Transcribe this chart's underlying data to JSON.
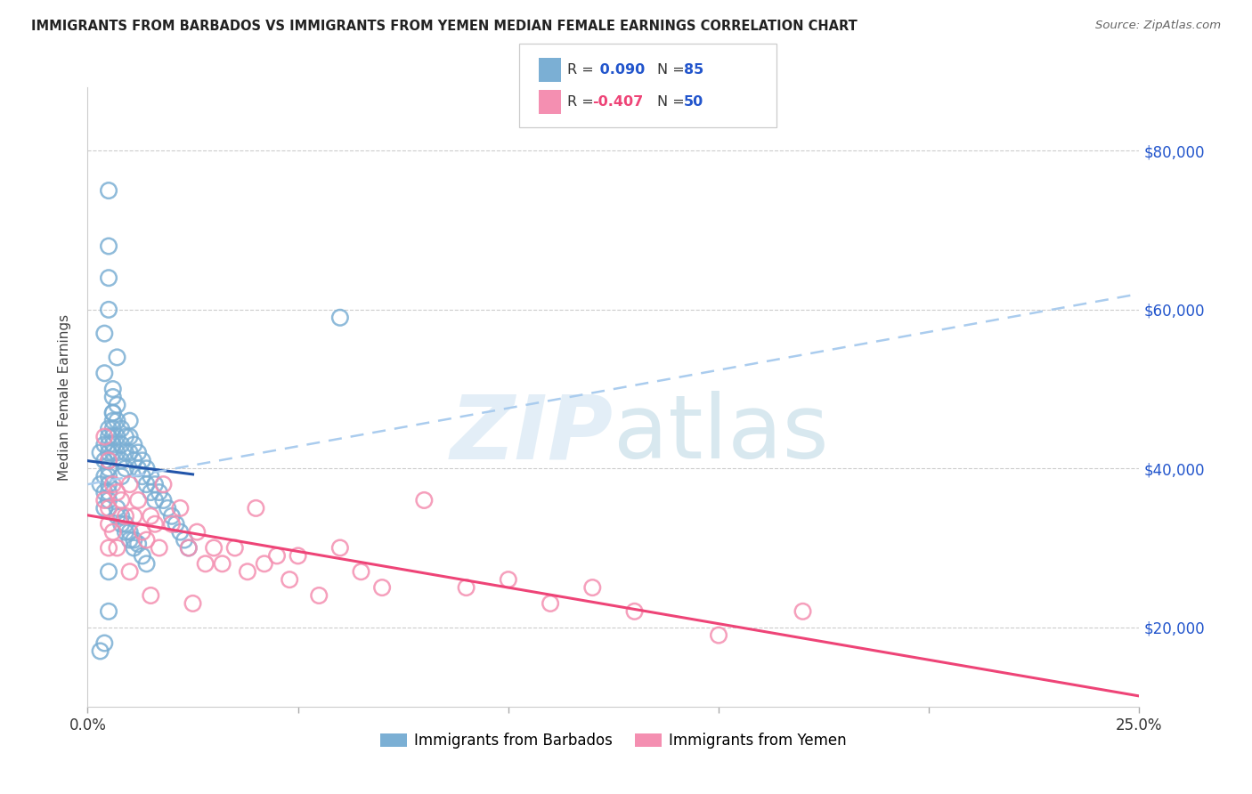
{
  "title": "IMMIGRANTS FROM BARBADOS VS IMMIGRANTS FROM YEMEN MEDIAN FEMALE EARNINGS CORRELATION CHART",
  "source": "Source: ZipAtlas.com",
  "ylabel": "Median Female Earnings",
  "y_ticks": [
    20000,
    40000,
    60000,
    80000
  ],
  "y_tick_labels": [
    "$20,000",
    "$40,000",
    "$60,000",
    "$80,000"
  ],
  "x_min": 0.0,
  "x_max": 0.25,
  "y_min": 10000,
  "y_max": 88000,
  "watermark": "ZIPatlas",
  "legend_r1": "0.090",
  "legend_n1": "85",
  "legend_r2": "-0.407",
  "legend_n2": "50",
  "color_blue": "#7bafd4",
  "color_pink": "#f48fb1",
  "color_blue_line": "#2255aa",
  "color_blue_dash": "#aaccee",
  "color_pink_line": "#ee4477",
  "background": "#ffffff",
  "grid_color": "#cccccc",
  "barbados_x": [
    0.003,
    0.003,
    0.004,
    0.004,
    0.004,
    0.004,
    0.004,
    0.005,
    0.005,
    0.005,
    0.005,
    0.005,
    0.005,
    0.005,
    0.005,
    0.005,
    0.005,
    0.005,
    0.006,
    0.006,
    0.006,
    0.006,
    0.006,
    0.006,
    0.006,
    0.007,
    0.007,
    0.007,
    0.007,
    0.007,
    0.008,
    0.008,
    0.008,
    0.008,
    0.009,
    0.009,
    0.009,
    0.01,
    0.01,
    0.01,
    0.011,
    0.011,
    0.012,
    0.012,
    0.013,
    0.013,
    0.014,
    0.014,
    0.015,
    0.015,
    0.016,
    0.016,
    0.017,
    0.018,
    0.019,
    0.02,
    0.021,
    0.022,
    0.023,
    0.024,
    0.005,
    0.005,
    0.005,
    0.004,
    0.004,
    0.006,
    0.006,
    0.007,
    0.008,
    0.009,
    0.01,
    0.011,
    0.012,
    0.013,
    0.014,
    0.007,
    0.008,
    0.009,
    0.01,
    0.011,
    0.06,
    0.005,
    0.005,
    0.004,
    0.003
  ],
  "barbados_y": [
    42000,
    38000,
    43000,
    41000,
    39000,
    37000,
    35000,
    75000,
    45000,
    44000,
    43000,
    42000,
    41000,
    40000,
    39000,
    38000,
    37000,
    36000,
    50000,
    47000,
    46000,
    45000,
    44000,
    43000,
    42000,
    54000,
    48000,
    46000,
    44000,
    42000,
    45000,
    43000,
    41000,
    39000,
    44000,
    42000,
    40000,
    46000,
    44000,
    42000,
    43000,
    41000,
    42000,
    40000,
    41000,
    39000,
    40000,
    38000,
    39000,
    37000,
    38000,
    36000,
    37000,
    36000,
    35000,
    34000,
    33000,
    32000,
    31000,
    30000,
    68000,
    64000,
    60000,
    57000,
    52000,
    49000,
    47000,
    35000,
    34000,
    33000,
    32000,
    31000,
    30500,
    29000,
    28000,
    34000,
    33000,
    32000,
    31000,
    30000,
    59000,
    27000,
    22000,
    18000,
    17000
  ],
  "yemen_x": [
    0.004,
    0.004,
    0.005,
    0.005,
    0.005,
    0.006,
    0.006,
    0.007,
    0.008,
    0.009,
    0.01,
    0.011,
    0.012,
    0.013,
    0.014,
    0.015,
    0.016,
    0.017,
    0.018,
    0.02,
    0.022,
    0.024,
    0.026,
    0.028,
    0.03,
    0.032,
    0.035,
    0.038,
    0.04,
    0.042,
    0.045,
    0.048,
    0.05,
    0.055,
    0.06,
    0.065,
    0.07,
    0.08,
    0.09,
    0.1,
    0.11,
    0.12,
    0.13,
    0.15,
    0.17,
    0.005,
    0.007,
    0.01,
    0.015,
    0.025
  ],
  "yemen_y": [
    44000,
    36000,
    41000,
    35000,
    30000,
    38000,
    32000,
    37000,
    36000,
    34000,
    38000,
    34000,
    36000,
    32000,
    31000,
    34000,
    33000,
    30000,
    38000,
    33000,
    35000,
    30000,
    32000,
    28000,
    30000,
    28000,
    30000,
    27000,
    35000,
    28000,
    29000,
    26000,
    29000,
    24000,
    30000,
    27000,
    25000,
    36000,
    25000,
    26000,
    23000,
    25000,
    22000,
    19000,
    22000,
    33000,
    30000,
    27000,
    24000,
    23000
  ]
}
